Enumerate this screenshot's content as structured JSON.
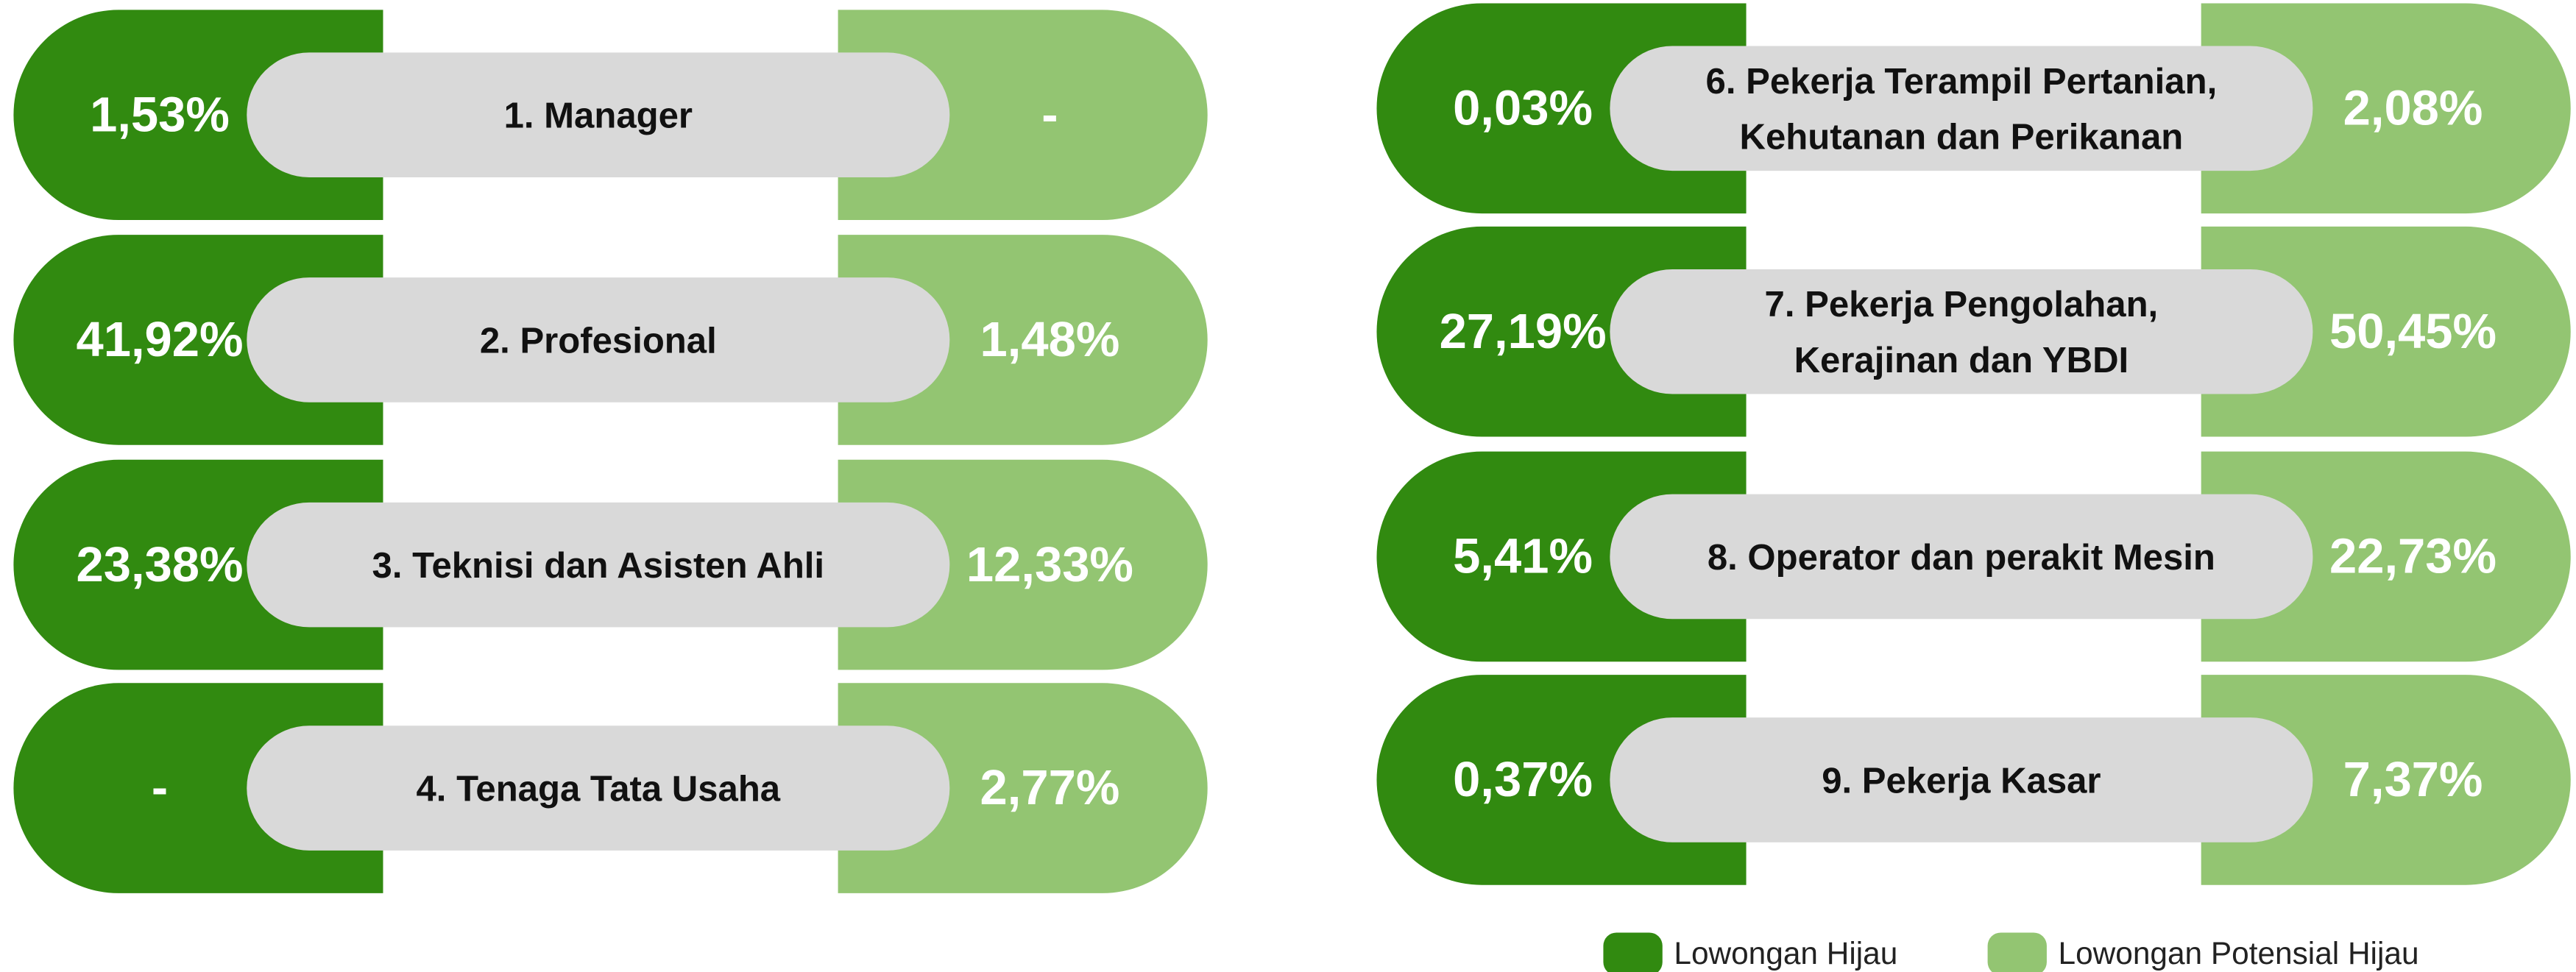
{
  "rows": [
    {
      "label": [
        "1. Manager"
      ],
      "hijau": "1,53%",
      "potensial": "-"
    },
    {
      "label": [
        "2. Profesional"
      ],
      "hijau": "41,92%",
      "potensial": "1,48%"
    },
    {
      "label": [
        "3. Teknisi dan Asisten Ahli"
      ],
      "hijau": "23,38%",
      "potensial": "12,33%"
    },
    {
      "label": [
        "4. Tenaga Tata Usaha"
      ],
      "hijau": "-",
      "potensial": "2,77%"
    },
    {
      "label": [
        "6. Pekerja Terampil Pertanian,",
        "Kehutanan dan Perikanan"
      ],
      "hijau": "0,03%",
      "potensial": "2,08%"
    },
    {
      "label": [
        "7. Pekerja Pengolahan,",
        "Kerajinan dan YBDI"
      ],
      "hijau": "27,19%",
      "potensial": "50,45%"
    },
    {
      "label": [
        "8. Operator dan perakit Mesin"
      ],
      "hijau": "5,41%",
      "potensial": "22,73%"
    },
    {
      "label": [
        "9. Pekerja Kasar"
      ],
      "hijau": "0,37%",
      "potensial": "7,37%"
    }
  ],
  "colors": {
    "hijau": "#318a10",
    "potensial": "#93c572",
    "label": "#d9d9d9"
  },
  "legend": [
    {
      "name": "Lowongan Hijau"
    },
    {
      "name": "Lowongan Potensial Hijau"
    }
  ]
}
